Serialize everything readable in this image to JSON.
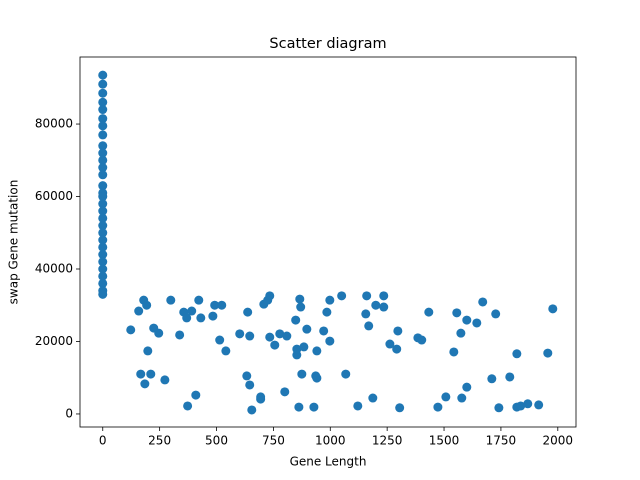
{
  "chart_data": {
    "type": "scatter",
    "title": "Scatter diagram",
    "x_label": "Gene Length",
    "y_label": "swap Gene mutation",
    "color": "#1f77b4",
    "grid": false,
    "xlim": [
      -100,
      2080
    ],
    "ylim": [
      -3600,
      98500
    ],
    "xticks": [
      0,
      250,
      500,
      750,
      1000,
      1250,
      1500,
      1750,
      2000
    ],
    "yticks": [
      0,
      20000,
      40000,
      60000,
      80000
    ],
    "x": [
      0,
      0,
      0,
      0,
      0,
      0,
      0,
      0,
      0,
      0,
      0,
      0,
      0,
      0,
      0,
      0,
      0,
      0,
      0,
      0,
      0,
      0,
      0,
      0,
      0,
      0,
      0,
      0,
      0,
      0,
      123,
      158,
      167,
      180,
      185,
      193,
      198,
      211,
      224,
      246,
      273,
      299,
      338,
      356,
      369,
      373,
      391,
      409,
      422,
      431,
      484,
      492,
      514,
      523,
      541,
      602,
      633,
      637,
      646,
      646,
      655,
      694,
      694,
      708,
      725,
      734,
      734,
      756,
      778,
      800,
      809,
      848,
      853,
      853,
      862,
      866,
      870,
      875,
      884,
      897,
      928,
      936,
      941,
      941,
      971,
      985,
      998,
      998,
      1050,
      1068,
      1121,
      1156,
      1160,
      1169,
      1187,
      1200,
      1235,
      1235,
      1262,
      1292,
      1297,
      1305,
      1385,
      1402,
      1433,
      1473,
      1508,
      1543,
      1556,
      1574,
      1578,
      1600,
      1600,
      1644,
      1670,
      1710,
      1727,
      1741,
      1789,
      1820,
      1820,
      1837,
      1868,
      1916,
      1956,
      1978
    ],
    "y": [
      93500,
      91000,
      88500,
      86000,
      84000,
      81500,
      79500,
      77000,
      74000,
      72000,
      70000,
      68000,
      66000,
      63000,
      61000,
      60000,
      58000,
      56000,
      54000,
      52000,
      50000,
      48000,
      46000,
      44000,
      42000,
      40000,
      38000,
      36000,
      34000,
      33000,
      23200,
      28400,
      11000,
      31400,
      8300,
      30000,
      17400,
      11000,
      23700,
      22300,
      9400,
      31400,
      21800,
      28100,
      26500,
      2200,
      28400,
      5200,
      31400,
      26500,
      27000,
      30000,
      20400,
      30000,
      17400,
      22100,
      10500,
      28100,
      21500,
      8000,
      1100,
      4100,
      4700,
      30300,
      31400,
      32600,
      21200,
      19000,
      22100,
      6100,
      21500,
      25900,
      16300,
      17900,
      1900,
      31700,
      29500,
      11000,
      18500,
      23400,
      1900,
      10500,
      17400,
      9900,
      22900,
      28100,
      31400,
      20100,
      32600,
      11000,
      2200,
      27600,
      32600,
      24300,
      4400,
      30000,
      32600,
      29500,
      19300,
      17900,
      22900,
      1700,
      21000,
      20400,
      28100,
      1900,
      4700,
      17100,
      27900,
      22300,
      4400,
      25900,
      7400,
      25100,
      30900,
      9700,
      27600,
      1700,
      10200,
      1900,
      16600,
      2200,
      2800,
      2500,
      16800,
      29000
    ]
  }
}
